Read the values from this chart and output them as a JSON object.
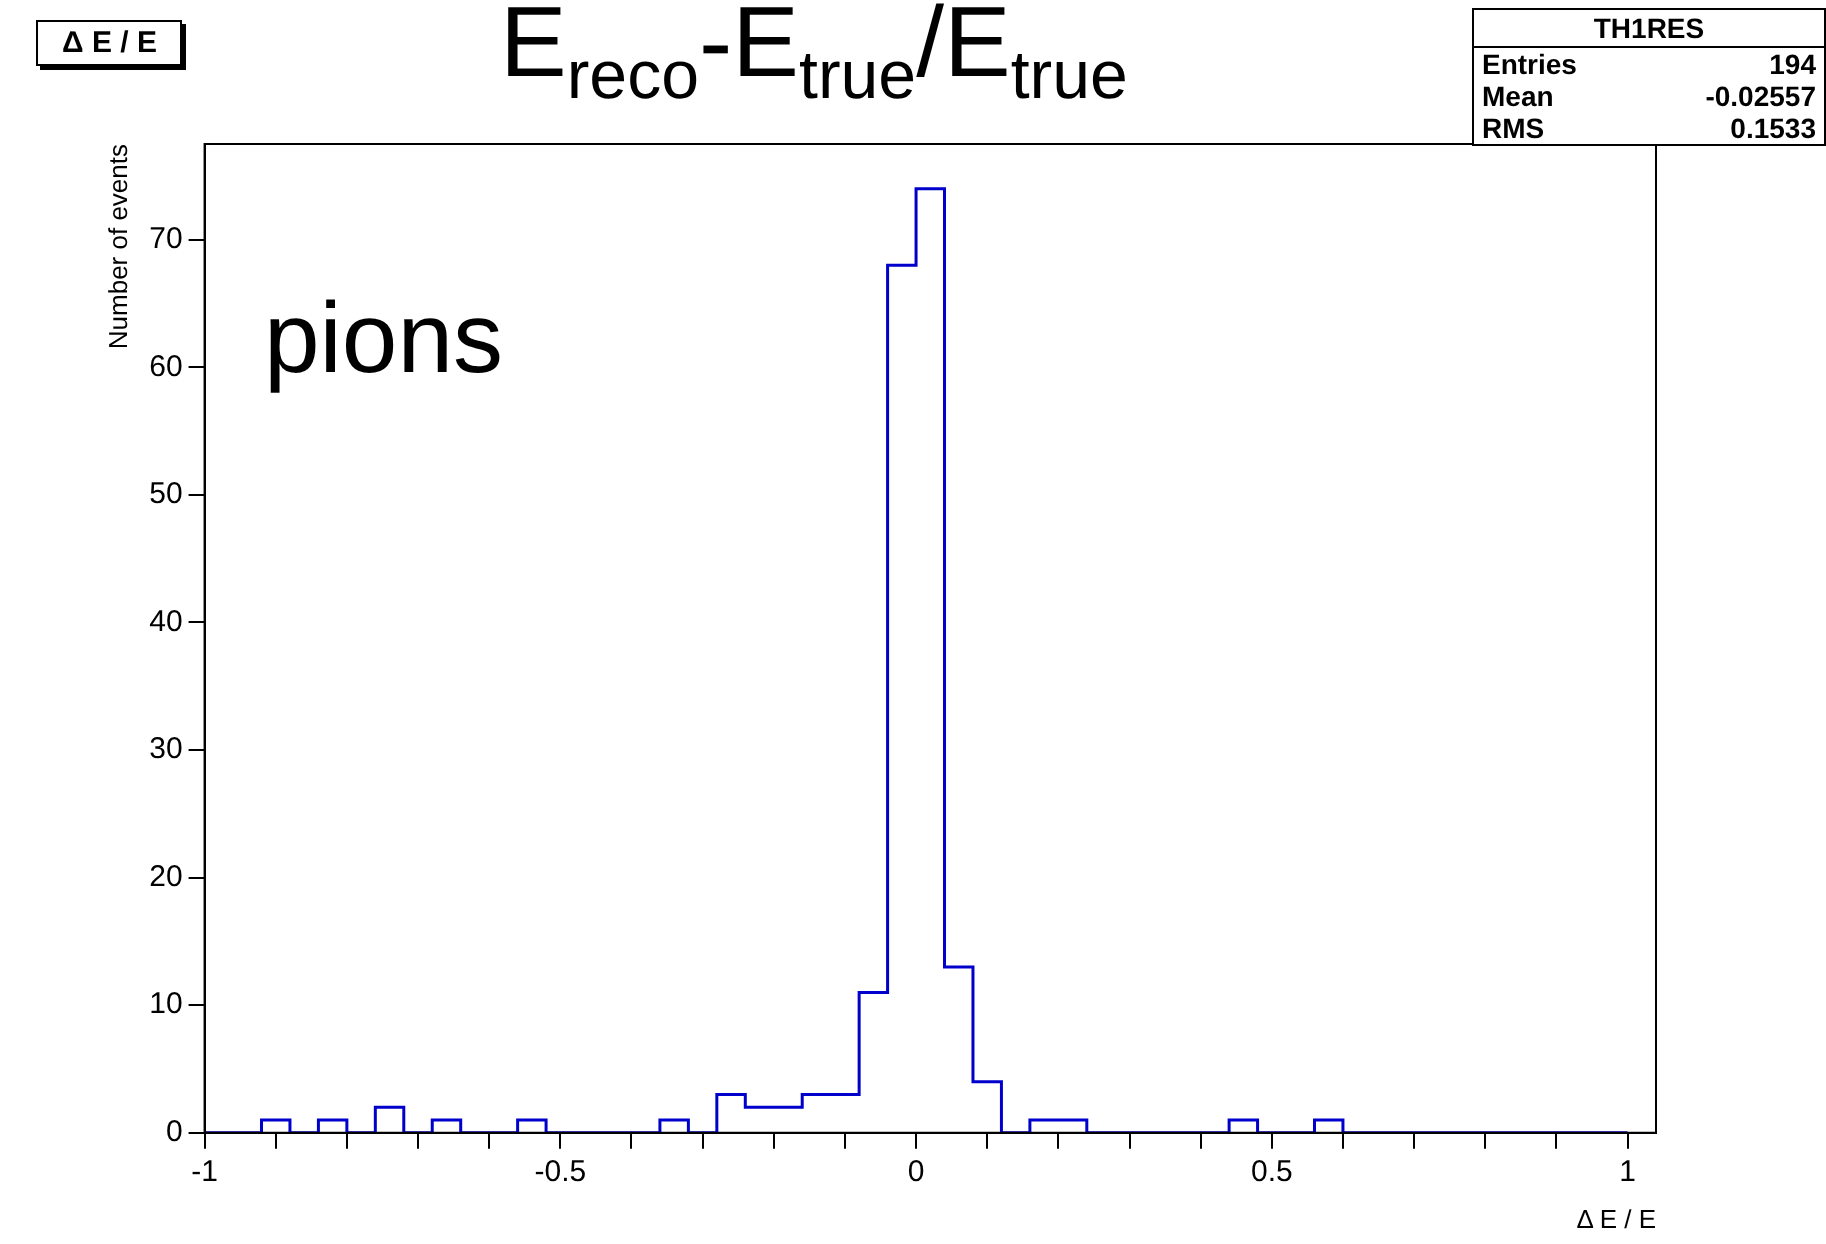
{
  "chart_data": {
    "type": "histogram",
    "title": "E$_{reco}$-E$_{true}$/E$_{true}$",
    "xlabel": "Δ E / E",
    "ylabel": "Number of events",
    "bins": [
      -1,
      -0.96,
      -0.92,
      -0.88,
      -0.84,
      -0.8,
      -0.76,
      -0.72,
      -0.68,
      -0.64,
      -0.6,
      -0.56,
      -0.52,
      -0.48,
      -0.44,
      -0.4,
      -0.36,
      -0.32,
      -0.28,
      -0.24,
      -0.2,
      -0.16,
      -0.12,
      -0.08,
      -0.04,
      0,
      0.04,
      0.08,
      0.12,
      0.16,
      0.2,
      0.24,
      0.28,
      0.32,
      0.36,
      0.4,
      0.44,
      0.48,
      0.52,
      0.56,
      0.6,
      0.64,
      0.68,
      0.72,
      0.76,
      0.8,
      0.84,
      0.88,
      0.92,
      0.96,
      1
    ],
    "values": [
      0,
      0,
      1,
      0,
      1,
      0,
      2,
      0,
      1,
      0,
      0,
      1,
      0,
      0,
      0,
      0,
      1,
      0,
      3,
      2,
      2,
      3,
      3,
      11,
      68,
      74,
      13,
      4,
      0,
      1,
      1,
      0,
      0,
      0,
      0,
      0,
      1,
      0,
      0,
      1,
      0,
      0,
      0,
      0,
      0,
      0,
      0,
      0,
      0,
      0
    ],
    "color": "#0000cc",
    "xlim": [
      -1,
      1.04
    ],
    "ylim": [
      0,
      77.5
    ],
    "xticks": [
      -1,
      {
        "value": -0.9,
        "label": null
      },
      {
        "value": -0.8,
        "label": null
      },
      {
        "value": -0.7,
        "label": null
      },
      {
        "value": -0.6,
        "label": null
      },
      -0.5,
      {
        "value": -0.4,
        "label": null
      },
      {
        "value": -0.3,
        "label": null
      },
      {
        "value": -0.2,
        "label": null
      },
      {
        "value": -0.1,
        "label": null
      },
      0,
      {
        "value": 0.1,
        "label": null
      },
      {
        "value": 0.2,
        "label": null
      },
      {
        "value": 0.3,
        "label": null
      },
      {
        "value": 0.4,
        "label": null
      },
      0.5,
      {
        "value": 0.6,
        "label": null
      },
      {
        "value": 0.7,
        "label": null
      },
      {
        "value": 0.8,
        "label": null
      },
      {
        "value": 0.9,
        "label": null
      },
      1
    ],
    "yticks": [
      0,
      10,
      20,
      30,
      40,
      50,
      60,
      70
    ],
    "grid": false,
    "legend": false,
    "annotations": [
      "Δ E / E",
      "pions",
      "TH1RES",
      "Entries",
      "194",
      "Mean",
      "-0.02557",
      "RMS",
      "0.1533"
    ]
  }
}
